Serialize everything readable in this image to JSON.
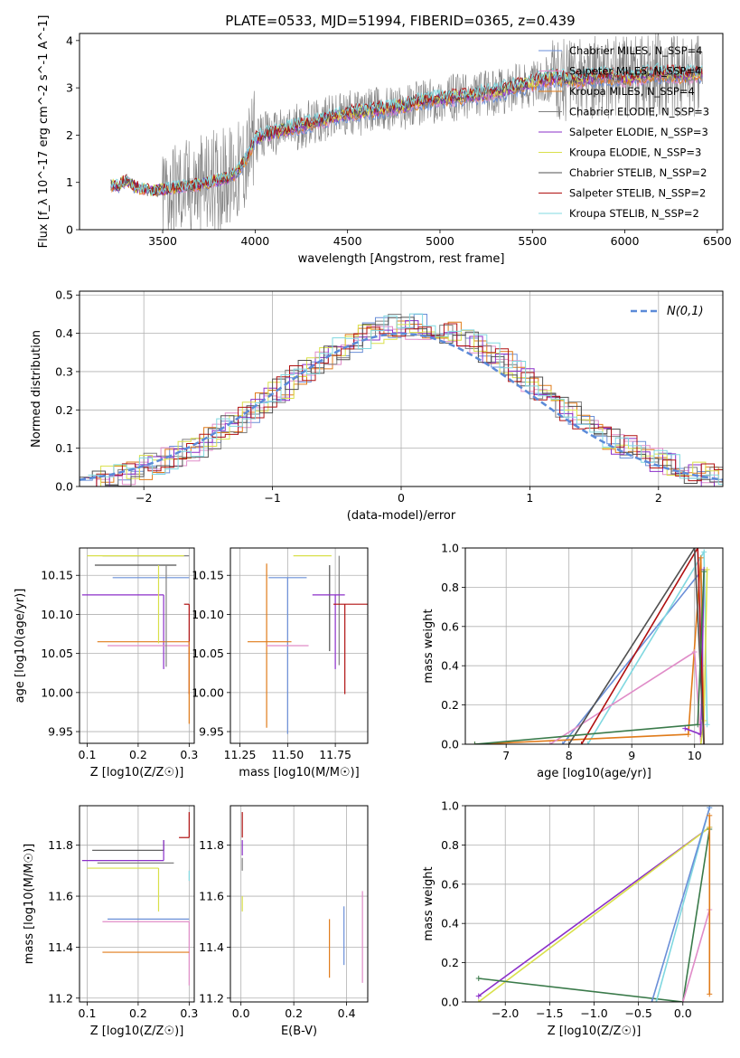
{
  "figure": {
    "title": "PLATE=0533, MJD=51994, FIBERID=0365, z=0.439"
  },
  "chart_data": [
    {
      "id": "spectrum",
      "type": "line",
      "title": "PLATE=0533, MJD=51994, FIBERID=0365, z=0.439",
      "xlabel": "wavelength [Angstrom, rest frame]",
      "ylabel": "Flux [f_λ 10^-17 erg cm^-2 s^-1 A^-1]",
      "xlim": [
        3050,
        6530
      ],
      "ylim": [
        0,
        4.15
      ],
      "xticks": [
        3500,
        4000,
        4500,
        5000,
        5500,
        6000,
        6500
      ],
      "yticks": [
        0,
        1,
        2,
        3,
        4
      ],
      "grid": false,
      "legend_position": "top-right",
      "series": [
        {
          "name": "Chabrier MILES, N_SSP=4",
          "color": "#6a8fd8"
        },
        {
          "name": "Salpeter MILES, N_SSP=4",
          "color": "#e08cc8"
        },
        {
          "name": "Kroupa MILES, N_SSP=4",
          "color": "#e07b1a"
        },
        {
          "name": "Chabrier ELODIE, N_SSP=3",
          "color": "#808080"
        },
        {
          "name": "Salpeter ELODIE, N_SSP=3",
          "color": "#8b2fc9"
        },
        {
          "name": "Kroupa ELODIE, N_SSP=3",
          "color": "#d9e04a"
        },
        {
          "name": "Chabrier STELIB, N_SSP=2",
          "color": "#505050"
        },
        {
          "name": "Salpeter STELIB, N_SSP=2",
          "color": "#b01010"
        },
        {
          "name": "Kroupa STELIB, N_SSP=2",
          "color": "#80d8e0"
        }
      ],
      "model_continuum": {
        "x": [
          3220,
          3260,
          3300,
          3350,
          3400,
          3450,
          3500,
          3550,
          3600,
          3650,
          3700,
          3750,
          3800,
          3850,
          3900,
          3950,
          4000,
          4050,
          4100,
          4200,
          4300,
          4400,
          4500,
          4600,
          4700,
          4800,
          4900,
          5000,
          5100,
          5200,
          5300,
          5400,
          5500,
          5600,
          5700,
          5800,
          5900,
          6000,
          6100,
          6200,
          6300,
          6420
        ],
        "y": [
          0.95,
          0.92,
          1.05,
          0.9,
          0.85,
          0.82,
          0.85,
          0.88,
          0.9,
          0.92,
          0.95,
          1.0,
          1.05,
          1.1,
          1.2,
          1.5,
          1.9,
          2.0,
          2.05,
          2.15,
          2.25,
          2.35,
          2.45,
          2.5,
          2.55,
          2.6,
          2.7,
          2.75,
          2.8,
          2.85,
          2.9,
          3.0,
          3.1,
          3.2,
          3.15,
          3.2,
          3.25,
          3.2,
          3.25,
          3.3,
          3.25,
          3.3
        ]
      },
      "data_range": [
        3220,
        6420
      ]
    },
    {
      "id": "residuals",
      "type": "line",
      "xlabel": "(data-model)/error",
      "ylabel": "Normed distribution",
      "xlim": [
        -2.5,
        2.5
      ],
      "ylim": [
        0,
        0.51
      ],
      "xticks": [
        -2,
        -1,
        0,
        1,
        2
      ],
      "yticks": [
        0.0,
        0.1,
        0.2,
        0.3,
        0.4,
        0.5
      ],
      "grid": true,
      "legend_position": "top-right",
      "reference_curve": {
        "name": "N(0,1)",
        "color": "#5b8ad8",
        "style": "dashed"
      },
      "histogram_bin_width": 0.1,
      "histogram_colors": [
        "#6a8fd8",
        "#e08cc8",
        "#e07b1a",
        "#808080",
        "#8b2fc9",
        "#d9e04a",
        "#505050",
        "#b01010",
        "#80d8e0"
      ]
    },
    {
      "id": "age_vs_Z",
      "type": "scatter",
      "xlabel": "Z [log10(Z/Z☉)]",
      "ylabel": "age [log10(age/yr)]",
      "xlim": [
        0.085,
        0.31
      ],
      "ylim": [
        9.935,
        10.185
      ],
      "xticks": [
        0.1,
        0.2,
        0.3
      ],
      "yticks": [
        9.95,
        10.0,
        10.05,
        10.1,
        10.15
      ],
      "grid": true,
      "points": [
        {
          "x": 0.3,
          "y": 10.175,
          "xerr": [
            0.17,
            0.0
          ],
          "yerr": [
            0.0,
            0.0
          ],
          "color": "#808080"
        },
        {
          "x": 0.29,
          "y": 10.175,
          "xerr": [
            0.19,
            0.0
          ],
          "yerr": [
            0.0,
            0.0
          ],
          "color": "#d9e04a"
        },
        {
          "x": 0.275,
          "y": 10.163,
          "xerr": [
            0.16,
            0.0
          ],
          "yerr": [
            0.0,
            0.0
          ],
          "color": "#505050"
        },
        {
          "x": 0.3,
          "y": 10.147,
          "xerr": [
            0.15,
            0.0
          ],
          "yerr": [
            0.0,
            0.0
          ],
          "color": "#6a8fd8"
        },
        {
          "x": 0.25,
          "y": 10.125,
          "xerr": [
            0.16,
            0.0
          ],
          "yerr": [
            0.095,
            0.0
          ],
          "color": "#8b2fc9"
        },
        {
          "x": 0.3,
          "y": 10.113,
          "xerr": [
            0.01,
            0.0
          ],
          "yerr": [
            0.115,
            0.0
          ],
          "color": "#b01010"
        },
        {
          "x": 0.3,
          "y": 10.065,
          "xerr": [
            0.18,
            0.0
          ],
          "yerr": [
            0.105,
            0.0
          ],
          "color": "#e07b1a"
        },
        {
          "x": 0.3,
          "y": 10.06,
          "xerr": [
            0.16,
            0.0
          ],
          "yerr": [
            0.0,
            0.0
          ],
          "color": "#e08cc8"
        },
        {
          "x": 0.255,
          "y": 10.163,
          "xerr": [
            0.0,
            0.0
          ],
          "yerr": [
            0.13,
            0.0
          ],
          "color": "#808080"
        },
        {
          "x": 0.24,
          "y": 10.163,
          "xerr": [
            0.0,
            0.0
          ],
          "yerr": [
            0.1,
            0.0
          ],
          "color": "#d9e04a"
        }
      ]
    },
    {
      "id": "age_vs_mass",
      "type": "scatter",
      "xlabel": "mass [log10(M/M☉)]",
      "ylabel": "",
      "xlim": [
        11.2,
        11.92
      ],
      "ylim": [
        9.935,
        10.185
      ],
      "xticks": [
        11.25,
        11.5,
        11.75
      ],
      "yticks": [
        9.95,
        10.0,
        10.05,
        10.1,
        10.15
      ],
      "grid": true,
      "points": [
        {
          "x": 11.73,
          "y": 10.175,
          "xerr": [
            0.2,
            0.0
          ],
          "yerr": [
            0.0,
            0.0
          ],
          "color": "#d9e04a"
        },
        {
          "x": 11.77,
          "y": 10.175,
          "xerr": [
            0.0,
            0.0
          ],
          "yerr": [
            0.14,
            0.0
          ],
          "color": "#808080"
        },
        {
          "x": 11.72,
          "y": 10.163,
          "xerr": [
            0.0,
            0.0
          ],
          "yerr": [
            0.11,
            0.0
          ],
          "color": "#505050"
        },
        {
          "x": 11.5,
          "y": 10.147,
          "xerr": [
            0.1,
            0.1
          ],
          "yerr": [
            0.2,
            0.0
          ],
          "color": "#6a8fd8"
        },
        {
          "x": 11.75,
          "y": 10.125,
          "xerr": [
            0.12,
            0.05
          ],
          "yerr": [
            0.095,
            0.0
          ],
          "color": "#8b2fc9"
        },
        {
          "x": 11.8,
          "y": 10.113,
          "xerr": [
            0.06,
            0.13
          ],
          "yerr": [
            0.115,
            0.0
          ],
          "color": "#b01010"
        },
        {
          "x": 11.39,
          "y": 10.065,
          "xerr": [
            0.1,
            0.13
          ],
          "yerr": [
            0.11,
            0.1
          ],
          "color": "#e07b1a"
        },
        {
          "x": 11.5,
          "y": 10.06,
          "xerr": [
            0.11,
            0.11
          ],
          "yerr": [
            0.0,
            0.0
          ],
          "color": "#e08cc8"
        }
      ]
    },
    {
      "id": "mass_weight_vs_age",
      "type": "line",
      "xlabel": "age [log10(age/yr)]",
      "ylabel": "mass weight",
      "xlim": [
        6.35,
        10.45
      ],
      "ylim": [
        0,
        1.0
      ],
      "xticks": [
        7,
        8,
        9,
        10
      ],
      "yticks": [
        0.0,
        0.2,
        0.4,
        0.6,
        0.8,
        1.0
      ],
      "grid": true,
      "series": [
        {
          "color": "#6a8fd8",
          "x": [
            7.9,
            10.1,
            10.15
          ],
          "y": [
            0.0,
            0.88,
            0.0
          ]
        },
        {
          "color": "#80d8e0",
          "x": [
            8.3,
            10.15,
            10.2
          ],
          "y": [
            0.0,
            0.98,
            0.1
          ]
        },
        {
          "color": "#e07b1a",
          "x": [
            6.5,
            9.9,
            10.1,
            10.15
          ],
          "y": [
            0.0,
            0.05,
            0.95,
            0.0
          ]
        },
        {
          "color": "#e08cc8",
          "x": [
            7.7,
            10.0,
            10.1
          ],
          "y": [
            0.0,
            0.47,
            0.0
          ]
        },
        {
          "color": "#8b2fc9",
          "x": [
            9.85,
            10.1,
            10.15
          ],
          "y": [
            0.08,
            0.05,
            0.89
          ]
        },
        {
          "color": "#d9e04a",
          "x": [
            10.1,
            10.15,
            10.2
          ],
          "y": [
            0.0,
            0.12,
            0.89
          ]
        },
        {
          "color": "#b01010",
          "x": [
            8.2,
            10.05,
            10.15
          ],
          "y": [
            0.0,
            1.0,
            0.0
          ]
        },
        {
          "color": "#505050",
          "x": [
            8.0,
            10.0,
            10.15
          ],
          "y": [
            0.0,
            1.0,
            0.0
          ]
        },
        {
          "color": "#3a7a4a",
          "x": [
            6.5,
            10.05,
            10.15
          ],
          "y": [
            0.0,
            0.1,
            0.88
          ]
        }
      ]
    },
    {
      "id": "mass_vs_Z",
      "type": "scatter",
      "xlabel": "Z [log10(Z/Z☉)]",
      "ylabel": "mass [log10(M/M☉)]",
      "xlim": [
        0.085,
        0.31
      ],
      "ylim": [
        11.185,
        11.955
      ],
      "xticks": [
        0.1,
        0.2,
        0.3
      ],
      "yticks": [
        11.2,
        11.4,
        11.6,
        11.8
      ],
      "grid": true,
      "points": [
        {
          "x": 0.3,
          "y": 11.83,
          "xerr": [
            0.02,
            0.0
          ],
          "yerr": [
            0.0,
            0.1
          ],
          "color": "#b01010"
        },
        {
          "x": 0.25,
          "y": 11.78,
          "xerr": [
            0.14,
            0.0
          ],
          "yerr": [
            0.0,
            0.04
          ],
          "color": "#505050"
        },
        {
          "x": 0.25,
          "y": 11.74,
          "xerr": [
            0.16,
            0.0
          ],
          "yerr": [
            0.0,
            0.08
          ],
          "color": "#8b2fc9"
        },
        {
          "x": 0.27,
          "y": 11.73,
          "xerr": [
            0.15,
            0.0
          ],
          "yerr": [
            0.0,
            0.0
          ],
          "color": "#808080"
        },
        {
          "x": 0.24,
          "y": 11.71,
          "xerr": [
            0.14,
            0.0
          ],
          "yerr": [
            0.17,
            0.0
          ],
          "color": "#d9e04a"
        },
        {
          "x": 0.3,
          "y": 11.51,
          "xerr": [
            0.16,
            0.0
          ],
          "yerr": [
            0.0,
            0.0
          ],
          "color": "#6a8fd8"
        },
        {
          "x": 0.3,
          "y": 11.5,
          "xerr": [
            0.17,
            0.0
          ],
          "yerr": [
            0.25,
            0.0
          ],
          "color": "#e08cc8"
        },
        {
          "x": 0.3,
          "y": 11.38,
          "xerr": [
            0.17,
            0.0
          ],
          "yerr": [
            0.0,
            0.0
          ],
          "color": "#e07b1a"
        },
        {
          "x": 0.3,
          "y": 11.7,
          "xerr": [
            0.0,
            0.0
          ],
          "yerr": [
            0.04,
            0.0
          ],
          "color": "#80d8e0"
        }
      ]
    },
    {
      "id": "mass_vs_EBV",
      "type": "scatter",
      "xlabel": "E(B-V)",
      "ylabel": "",
      "xlim": [
        -0.04,
        0.48
      ],
      "ylim": [
        11.185,
        11.955
      ],
      "xticks": [
        0.0,
        0.2,
        0.4
      ],
      "yticks": [
        11.2,
        11.4,
        11.6,
        11.8
      ],
      "grid": true,
      "points": [
        {
          "x": 0.005,
          "y": 11.83,
          "xerr": [
            0.0,
            0.0
          ],
          "yerr": [
            0.0,
            0.1
          ],
          "color": "#b01010"
        },
        {
          "x": 0.005,
          "y": 11.76,
          "xerr": [
            0.0,
            0.0
          ],
          "yerr": [
            0.0,
            0.06
          ],
          "color": "#8b2fc9"
        },
        {
          "x": 0.005,
          "y": 11.7,
          "xerr": [
            0.0,
            0.0
          ],
          "yerr": [
            0.0,
            0.05
          ],
          "color": "#808080"
        },
        {
          "x": 0.005,
          "y": 11.6,
          "xerr": [
            0.0,
            0.0
          ],
          "yerr": [
            0.06,
            0.0
          ],
          "color": "#d9e04a"
        },
        {
          "x": 0.335,
          "y": 11.38,
          "xerr": [
            0.0,
            0.0
          ],
          "yerr": [
            0.1,
            0.13
          ],
          "color": "#e07b1a"
        },
        {
          "x": 0.39,
          "y": 11.44,
          "xerr": [
            0.0,
            0.0
          ],
          "yerr": [
            0.11,
            0.12
          ],
          "color": "#6a8fd8"
        },
        {
          "x": 0.46,
          "y": 11.44,
          "xerr": [
            0.0,
            0.0
          ],
          "yerr": [
            0.18,
            0.18
          ],
          "color": "#e08cc8"
        }
      ]
    },
    {
      "id": "mass_weight_vs_Z",
      "type": "line",
      "xlabel": "Z [log10(Z/Z☉)]",
      "ylabel": "mass weight",
      "xlim": [
        -2.45,
        0.45
      ],
      "ylim": [
        0,
        1.0
      ],
      "xticks": [
        -2.0,
        -1.5,
        -1.0,
        -0.5,
        0.0
      ],
      "yticks": [
        0.0,
        0.2,
        0.4,
        0.6,
        0.8,
        1.0
      ],
      "grid": true,
      "series": [
        {
          "color": "#8b2fc9",
          "x": [
            -2.3,
            0.3
          ],
          "y": [
            0.03,
            0.89
          ]
        },
        {
          "color": "#d9e04a",
          "x": [
            -2.3,
            0.3
          ],
          "y": [
            0.0,
            0.89
          ]
        },
        {
          "color": "#3a7a4a",
          "x": [
            -2.3,
            0.0,
            0.3
          ],
          "y": [
            0.12,
            0.0,
            0.88
          ]
        },
        {
          "color": "#80d8e0",
          "x": [
            -0.3,
            0.3
          ],
          "y": [
            0.0,
            0.99
          ]
        },
        {
          "color": "#6a8fd8",
          "x": [
            -0.35,
            0.3
          ],
          "y": [
            0.0,
            0.99
          ]
        },
        {
          "color": "#e08cc8",
          "x": [
            0.0,
            0.3
          ],
          "y": [
            0.0,
            0.47
          ]
        },
        {
          "color": "#e07b1a",
          "x": [
            0.3,
            0.3
          ],
          "y": [
            0.04,
            0.95
          ]
        }
      ]
    }
  ]
}
